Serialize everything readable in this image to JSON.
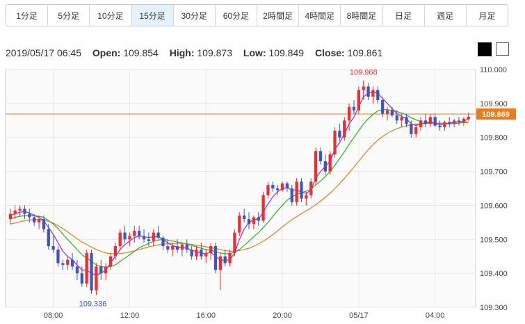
{
  "timeframes": [
    {
      "label": "1分足",
      "active": false
    },
    {
      "label": "5分足",
      "active": false
    },
    {
      "label": "10分足",
      "active": false
    },
    {
      "label": "15分足",
      "active": true
    },
    {
      "label": "30分足",
      "active": false
    },
    {
      "label": "60分足",
      "active": false
    },
    {
      "label": "2時間足",
      "active": false
    },
    {
      "label": "4時間足",
      "active": false
    },
    {
      "label": "8時間足",
      "active": false
    },
    {
      "label": "日足",
      "active": false
    },
    {
      "label": "週足",
      "active": false
    },
    {
      "label": "月足",
      "active": false
    }
  ],
  "ohlc": {
    "datetime": "2019/05/17 06:45",
    "open_label": "Open:",
    "open": "109.854",
    "high_label": "High:",
    "high": "109.873",
    "low_label": "Low:",
    "low": "109.849",
    "close_label": "Close:",
    "close": "109.861"
  },
  "theme": {
    "dark": "black",
    "light": "white"
  },
  "colors": {
    "up": "#e8302f",
    "down": "#3d54c4",
    "ma_short": "#a020f0",
    "ma_mid": "#22b522",
    "ma_long": "#f07a1a",
    "price_line": "#f07a1a",
    "grid": "#e6e6e6",
    "plot_bg": "#fbfbfb"
  },
  "chart_data": {
    "type": "candlestick",
    "y_range": [
      109.3,
      110.0
    ],
    "y_ticks": [
      "110.000",
      "109.900",
      "109.800",
      "109.700",
      "109.600",
      "109.500",
      "109.400",
      "109.300"
    ],
    "y_tick_values": [
      110.0,
      109.9,
      109.8,
      109.7,
      109.6,
      109.5,
      109.4,
      109.3
    ],
    "x_ticks": [
      "08:00",
      "12:00",
      "16:00",
      "20:00",
      "05/17",
      "04:00"
    ],
    "x_tick_index": [
      9,
      25,
      41,
      57,
      73,
      89
    ],
    "current_price": "109.869",
    "current_price_value": 109.869,
    "high_annotation": {
      "label": "109.968",
      "value": 109.968,
      "index": 74
    },
    "low_annotation": {
      "label": "109.336",
      "value": 109.336,
      "index": 17
    },
    "candles": [
      [
        109.56,
        109.59,
        109.545,
        109.575
      ],
      [
        109.575,
        109.6,
        109.56,
        109.585
      ],
      [
        109.585,
        109.6,
        109.57,
        109.59
      ],
      [
        109.59,
        109.6,
        109.56,
        109.575
      ],
      [
        109.575,
        109.59,
        109.55,
        109.565
      ],
      [
        109.565,
        109.575,
        109.54,
        109.55
      ],
      [
        109.55,
        109.57,
        109.53,
        109.56
      ],
      [
        109.56,
        109.57,
        109.52,
        109.53
      ],
      [
        109.53,
        109.545,
        109.47,
        109.48
      ],
      [
        109.48,
        109.51,
        109.46,
        109.47
      ],
      [
        109.47,
        109.48,
        109.42,
        109.43
      ],
      [
        109.43,
        109.44,
        109.41,
        109.425
      ],
      [
        109.425,
        109.45,
        109.41,
        109.44
      ],
      [
        109.44,
        109.46,
        109.41,
        109.42
      ],
      [
        109.42,
        109.44,
        109.38,
        109.4
      ],
      [
        109.4,
        109.42,
        109.36,
        109.37
      ],
      [
        109.37,
        109.47,
        109.36,
        109.46
      ],
      [
        109.46,
        109.47,
        109.34,
        109.35
      ],
      [
        109.35,
        109.43,
        109.336,
        109.42
      ],
      [
        109.42,
        109.44,
        109.38,
        109.4
      ],
      [
        109.4,
        109.43,
        109.38,
        109.42
      ],
      [
        109.42,
        109.46,
        109.41,
        109.45
      ],
      [
        109.45,
        109.49,
        109.44,
        109.48
      ],
      [
        109.48,
        109.53,
        109.47,
        109.52
      ],
      [
        109.52,
        109.54,
        109.49,
        109.5
      ],
      [
        109.5,
        109.52,
        109.48,
        109.51
      ],
      [
        109.51,
        109.54,
        109.49,
        109.525
      ],
      [
        109.525,
        109.54,
        109.5,
        109.51
      ],
      [
        109.51,
        109.53,
        109.49,
        109.5
      ],
      [
        109.5,
        109.52,
        109.48,
        109.495
      ],
      [
        109.495,
        109.53,
        109.48,
        109.52
      ],
      [
        109.52,
        109.54,
        109.5,
        109.505
      ],
      [
        109.505,
        109.51,
        109.47,
        109.48
      ],
      [
        109.48,
        109.5,
        109.46,
        109.47
      ],
      [
        109.47,
        109.49,
        109.45,
        109.48
      ],
      [
        109.48,
        109.5,
        109.46,
        109.47
      ],
      [
        109.47,
        109.49,
        109.45,
        109.485
      ],
      [
        109.485,
        109.5,
        109.46,
        109.47
      ],
      [
        109.47,
        109.48,
        109.44,
        109.45
      ],
      [
        109.45,
        109.48,
        109.44,
        109.47
      ],
      [
        109.47,
        109.49,
        109.44,
        109.45
      ],
      [
        109.45,
        109.47,
        109.43,
        109.46
      ],
      [
        109.46,
        109.49,
        109.44,
        109.48
      ],
      [
        109.48,
        109.49,
        109.4,
        109.41
      ],
      [
        109.41,
        109.46,
        109.35,
        109.45
      ],
      [
        109.45,
        109.47,
        109.42,
        109.43
      ],
      [
        109.43,
        109.47,
        109.42,
        109.46
      ],
      [
        109.46,
        109.53,
        109.45,
        109.52
      ],
      [
        109.52,
        109.58,
        109.51,
        109.57
      ],
      [
        109.57,
        109.59,
        109.55,
        109.56
      ],
      [
        109.56,
        109.58,
        109.53,
        109.545
      ],
      [
        109.545,
        109.57,
        109.53,
        109.565
      ],
      [
        109.565,
        109.58,
        109.54,
        109.555
      ],
      [
        109.555,
        109.64,
        109.55,
        109.63
      ],
      [
        109.63,
        109.67,
        109.62,
        109.66
      ],
      [
        109.66,
        109.67,
        109.64,
        109.65
      ],
      [
        109.65,
        109.66,
        109.63,
        109.645
      ],
      [
        109.645,
        109.67,
        109.64,
        109.665
      ],
      [
        109.665,
        109.67,
        109.64,
        109.65
      ],
      [
        109.65,
        109.66,
        109.6,
        109.61
      ],
      [
        109.61,
        109.68,
        109.6,
        109.67
      ],
      [
        109.67,
        109.68,
        109.61,
        109.62
      ],
      [
        109.62,
        109.64,
        109.6,
        109.63
      ],
      [
        109.63,
        109.68,
        109.62,
        109.67
      ],
      [
        109.67,
        109.77,
        109.66,
        109.76
      ],
      [
        109.76,
        109.77,
        109.72,
        109.73
      ],
      [
        109.73,
        109.75,
        109.69,
        109.7
      ],
      [
        109.7,
        109.76,
        109.69,
        109.75
      ],
      [
        109.75,
        109.83,
        109.74,
        109.82
      ],
      [
        109.82,
        109.84,
        109.79,
        109.8
      ],
      [
        109.8,
        109.86,
        109.79,
        109.85
      ],
      [
        109.85,
        109.9,
        109.82,
        109.89
      ],
      [
        109.89,
        109.91,
        109.87,
        109.88
      ],
      [
        109.88,
        109.95,
        109.87,
        109.94
      ],
      [
        109.94,
        109.968,
        109.91,
        109.95
      ],
      [
        109.95,
        109.96,
        109.91,
        109.92
      ],
      [
        109.92,
        109.95,
        109.9,
        109.94
      ],
      [
        109.94,
        109.95,
        109.9,
        109.91
      ],
      [
        109.91,
        109.92,
        109.86,
        109.87
      ],
      [
        109.87,
        109.89,
        109.85,
        109.88
      ],
      [
        109.88,
        109.89,
        109.86,
        109.865
      ],
      [
        109.865,
        109.88,
        109.84,
        109.85
      ],
      [
        109.85,
        109.87,
        109.83,
        109.86
      ],
      [
        109.86,
        109.87,
        109.83,
        109.84
      ],
      [
        109.84,
        109.85,
        109.8,
        109.81
      ],
      [
        109.81,
        109.84,
        109.8,
        109.83
      ],
      [
        109.83,
        109.86,
        109.82,
        109.85
      ],
      [
        109.85,
        109.87,
        109.83,
        109.84
      ],
      [
        109.84,
        109.87,
        109.83,
        109.86
      ],
      [
        109.86,
        109.87,
        109.83,
        109.835
      ],
      [
        109.835,
        109.85,
        109.82,
        109.83
      ],
      [
        109.83,
        109.85,
        109.82,
        109.845
      ],
      [
        109.845,
        109.86,
        109.83,
        109.84
      ],
      [
        109.84,
        109.855,
        109.83,
        109.85
      ],
      [
        109.85,
        109.86,
        109.835,
        109.845
      ],
      [
        109.845,
        109.86,
        109.835,
        109.855
      ],
      [
        109.854,
        109.873,
        109.849,
        109.861
      ]
    ],
    "ma_short": [
      109.57,
      109.575,
      109.58,
      109.582,
      109.578,
      109.57,
      109.565,
      109.555,
      109.535,
      109.515,
      109.49,
      109.465,
      109.45,
      109.44,
      109.425,
      109.41,
      109.41,
      109.4,
      109.395,
      109.4,
      109.41,
      109.43,
      109.45,
      109.47,
      109.485,
      109.495,
      109.505,
      109.51,
      109.508,
      109.505,
      109.508,
      109.508,
      109.5,
      109.49,
      109.482,
      109.476,
      109.476,
      109.474,
      109.468,
      109.464,
      109.46,
      109.458,
      109.462,
      109.45,
      109.44,
      109.438,
      109.44,
      109.46,
      109.5,
      109.53,
      109.55,
      109.558,
      109.56,
      109.58,
      109.605,
      109.625,
      109.64,
      109.65,
      109.652,
      109.645,
      109.645,
      109.64,
      109.635,
      109.645,
      109.68,
      109.7,
      109.715,
      109.73,
      109.765,
      109.785,
      109.81,
      109.84,
      109.86,
      109.89,
      109.92,
      109.93,
      109.935,
      109.93,
      109.915,
      109.9,
      109.885,
      109.87,
      109.862,
      109.855,
      109.84,
      109.835,
      109.84,
      109.842,
      109.845,
      109.842,
      109.838,
      109.84,
      109.842,
      109.845,
      109.846,
      109.848,
      109.855
    ],
    "ma_mid": [
      109.56,
      109.565,
      109.568,
      109.57,
      109.571,
      109.57,
      109.568,
      109.565,
      109.555,
      109.545,
      109.532,
      109.515,
      109.5,
      109.485,
      109.47,
      109.455,
      109.445,
      109.435,
      109.425,
      109.42,
      109.418,
      109.42,
      109.425,
      109.435,
      109.445,
      109.455,
      109.465,
      109.475,
      109.482,
      109.488,
      109.494,
      109.498,
      109.5,
      109.498,
      109.495,
      109.492,
      109.49,
      109.486,
      109.482,
      109.478,
      109.474,
      109.47,
      109.468,
      109.464,
      109.46,
      109.458,
      109.458,
      109.462,
      109.47,
      109.482,
      109.495,
      109.508,
      109.52,
      109.535,
      109.55,
      109.568,
      109.585,
      109.6,
      109.615,
      109.625,
      109.632,
      109.638,
      109.642,
      109.648,
      109.66,
      109.672,
      109.685,
      109.7,
      109.718,
      109.738,
      109.758,
      109.78,
      109.8,
      109.82,
      109.84,
      109.855,
      109.868,
      109.878,
      109.882,
      109.882,
      109.88,
      109.876,
      109.872,
      109.866,
      109.858,
      109.852,
      109.847,
      109.845,
      109.843,
      109.842,
      109.84,
      109.84,
      109.84,
      109.841,
      109.842,
      109.844,
      109.846
    ],
    "ma_long": [
      109.545,
      109.548,
      109.552,
      109.555,
      109.557,
      109.558,
      109.558,
      109.557,
      109.553,
      109.548,
      109.54,
      109.532,
      109.522,
      109.512,
      109.502,
      109.492,
      109.485,
      109.477,
      109.47,
      109.465,
      109.46,
      109.458,
      109.457,
      109.458,
      109.46,
      109.463,
      109.466,
      109.47,
      109.474,
      109.478,
      109.481,
      109.484,
      109.486,
      109.487,
      109.488,
      109.488,
      109.488,
      109.487,
      109.485,
      109.483,
      109.481,
      109.478,
      109.476,
      109.473,
      109.47,
      109.467,
      109.465,
      109.465,
      109.467,
      109.47,
      109.474,
      109.48,
      109.487,
      109.495,
      109.504,
      109.514,
      109.525,
      109.537,
      109.548,
      109.558,
      109.567,
      109.576,
      109.584,
      109.592,
      109.602,
      109.613,
      109.624,
      109.636,
      109.65,
      109.664,
      109.68,
      109.696,
      109.713,
      109.73,
      109.748,
      109.764,
      109.779,
      109.792,
      109.803,
      109.812,
      109.82,
      109.826,
      109.831,
      109.835,
      109.837,
      109.839,
      109.84,
      109.841,
      109.842,
      109.842,
      109.842,
      109.842,
      109.842,
      109.842,
      109.843,
      109.843,
      109.844
    ]
  }
}
